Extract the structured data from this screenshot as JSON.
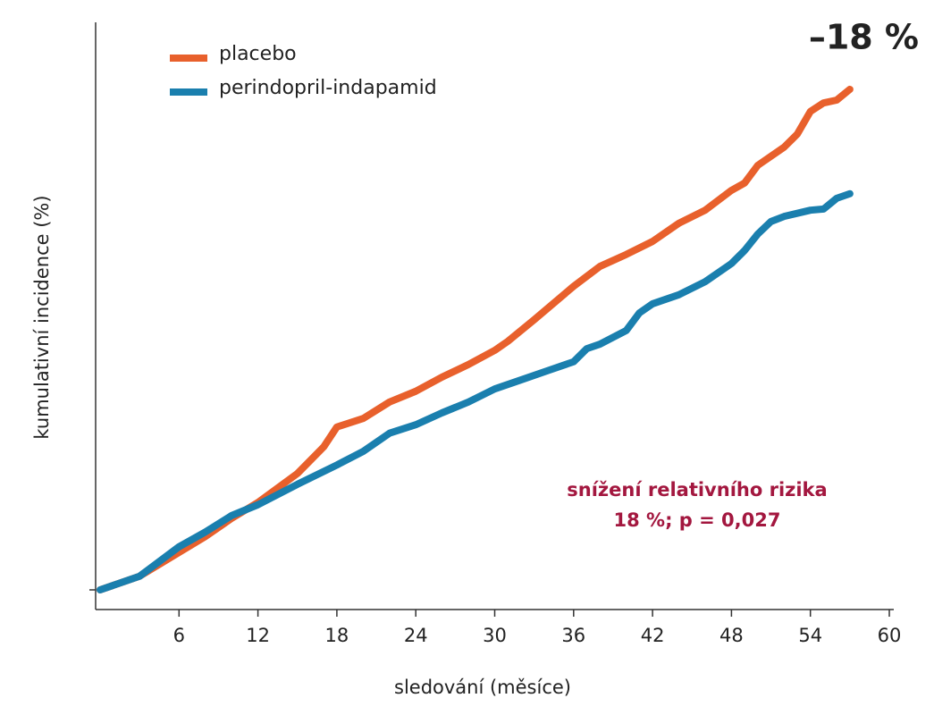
{
  "chart_data": {
    "type": "line",
    "headline": "–18 %",
    "annotation": [
      "snížení relativního rizika",
      "18 %;  p = 0,027"
    ],
    "xlabel": "sledování (měsíce)",
    "ylabel": "kumulativní incidence (%)",
    "xlim": [
      0,
      60
    ],
    "xticks": [
      6,
      12,
      18,
      24,
      30,
      36,
      42,
      48,
      54,
      60
    ],
    "ylim": [
      0,
      100
    ],
    "legend": "top-left",
    "series": [
      {
        "name": "placebo",
        "color": "#e8602c",
        "x": [
          0,
          3,
          6,
          8,
          10,
          12,
          15,
          17,
          18,
          20,
          22,
          24,
          26,
          28,
          30,
          31,
          33,
          36,
          38,
          40,
          42,
          44,
          46,
          48,
          49,
          50,
          52,
          53,
          54,
          55,
          56,
          57
        ],
        "values": [
          0,
          2.4,
          6.6,
          9.4,
          12.6,
          15.4,
          20.5,
          25.2,
          28.7,
          30.2,
          33.1,
          35.0,
          37.5,
          39.7,
          42.2,
          43.8,
          47.6,
          53.5,
          57.0,
          59.1,
          61.4,
          64.6,
          66.9,
          70.4,
          71.7,
          74.8,
          78.0,
          80.3,
          84.3,
          85.8,
          86.3,
          88.2
        ]
      },
      {
        "name": "perindopril-indapamid",
        "color": "#1a7fae",
        "x": [
          0,
          3,
          6,
          8,
          10,
          12,
          15,
          18,
          20,
          22,
          24,
          26,
          28,
          30,
          32,
          34,
          36,
          37,
          38,
          40,
          41,
          42,
          44,
          46,
          48,
          49,
          50,
          51,
          52,
          54,
          55,
          56,
          57
        ],
        "values": [
          0,
          2.4,
          7.6,
          10.2,
          13.1,
          15.0,
          18.6,
          22.0,
          24.4,
          27.6,
          29.1,
          31.2,
          33.1,
          35.4,
          37.0,
          38.6,
          40.2,
          42.5,
          43.3,
          45.7,
          48.8,
          50.4,
          52.0,
          54.3,
          57.5,
          59.8,
          62.7,
          64.9,
          65.8,
          66.9,
          67.1,
          69.0,
          69.8
        ]
      }
    ]
  }
}
